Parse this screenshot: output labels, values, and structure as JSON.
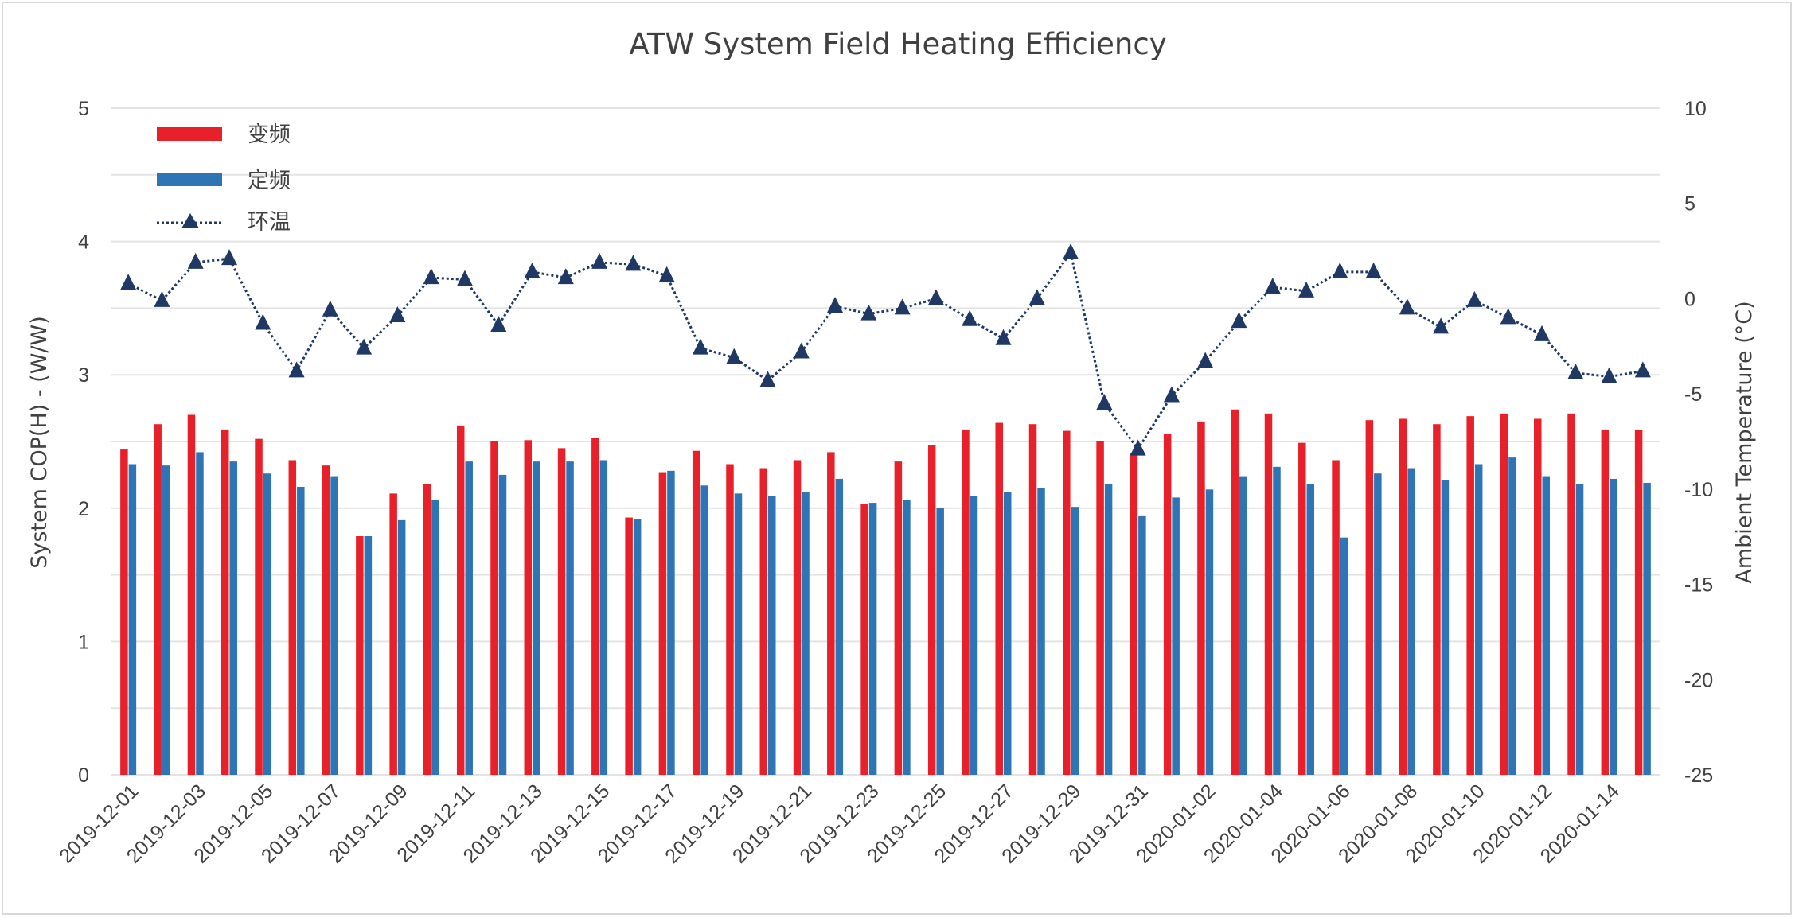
{
  "chart_data": {
    "type": "bar",
    "title": "ATW System Field Heating Efficiency",
    "ylabel_left": "System COP(H) - (W/W)",
    "ylabel_right": "Ambient Temperature (°C)",
    "ylim_left": [
      0,
      5
    ],
    "yticks_left": [
      "0",
      "1",
      "2",
      "3",
      "4",
      "5"
    ],
    "ylim_right": [
      -25,
      10
    ],
    "yticks_right": [
      "-25",
      "-20",
      "-15",
      "-10",
      "-5",
      "0",
      "5",
      "10"
    ],
    "grid": true,
    "legend_position": "top-left",
    "x_labels": [
      "2019-12-01",
      "2019-12-03",
      "2019-12-05",
      "2019-12-07",
      "2019-12-09",
      "2019-12-11",
      "2019-12-13",
      "2019-12-15",
      "2019-12-17",
      "2019-12-19",
      "2019-12-21",
      "2019-12-23",
      "2019-12-25",
      "2019-12-27",
      "2019-12-29",
      "2019-12-31",
      "2020-01-02",
      "2020-01-04",
      "2020-01-06",
      "2020-01-08",
      "2020-01-10",
      "2020-01-12",
      "2020-01-14"
    ],
    "categories": [
      "2019-12-01",
      "2019-12-02",
      "2019-12-03",
      "2019-12-04",
      "2019-12-05",
      "2019-12-06",
      "2019-12-07",
      "2019-12-08",
      "2019-12-09",
      "2019-12-10",
      "2019-12-11",
      "2019-12-12",
      "2019-12-13",
      "2019-12-14",
      "2019-12-15",
      "2019-12-16",
      "2019-12-17",
      "2019-12-18",
      "2019-12-19",
      "2019-12-20",
      "2019-12-21",
      "2019-12-22",
      "2019-12-23",
      "2019-12-24",
      "2019-12-25",
      "2019-12-26",
      "2019-12-27",
      "2019-12-28",
      "2019-12-29",
      "2019-12-30",
      "2019-12-31",
      "2020-01-01",
      "2020-01-02",
      "2020-01-03",
      "2020-01-04",
      "2020-01-05",
      "2020-01-06",
      "2020-01-07",
      "2020-01-08",
      "2020-01-09",
      "2020-01-10",
      "2020-01-11",
      "2020-01-12",
      "2020-01-13",
      "2020-01-14",
      "2020-01-15"
    ],
    "series": [
      {
        "name": "变频",
        "kind": "bar",
        "axis": "left",
        "color": "#e8202a",
        "values": [
          2.44,
          2.63,
          2.7,
          2.59,
          2.52,
          2.36,
          2.32,
          1.79,
          2.11,
          2.18,
          2.62,
          2.5,
          2.51,
          2.45,
          2.53,
          1.93,
          2.27,
          2.43,
          2.33,
          2.3,
          2.36,
          2.42,
          2.03,
          2.35,
          2.47,
          2.59,
          2.64,
          2.63,
          2.58,
          2.5,
          2.41,
          2.56,
          2.65,
          2.74,
          2.71,
          2.49,
          2.36,
          2.66,
          2.67,
          2.63,
          2.69,
          2.71,
          2.67,
          2.71,
          2.59,
          2.59
        ]
      },
      {
        "name": "定频",
        "kind": "bar",
        "axis": "left",
        "color": "#2e75b6",
        "values": [
          2.33,
          2.32,
          2.42,
          2.35,
          2.26,
          2.16,
          2.24,
          1.79,
          1.91,
          2.06,
          2.35,
          2.25,
          2.35,
          2.35,
          2.36,
          1.92,
          2.28,
          2.17,
          2.11,
          2.09,
          2.12,
          2.22,
          2.04,
          2.06,
          2.0,
          2.09,
          2.12,
          2.15,
          2.01,
          2.18,
          1.94,
          2.08,
          2.14,
          2.24,
          2.31,
          2.18,
          1.78,
          2.26,
          2.3,
          2.21,
          2.33,
          2.38,
          2.24,
          2.18,
          2.22,
          2.19
        ]
      },
      {
        "name": "环温",
        "kind": "line",
        "axis": "right",
        "color": "#1f3864",
        "values": [
          0.8,
          -0.1,
          1.9,
          2.1,
          -1.3,
          -3.8,
          -0.6,
          -2.6,
          -0.9,
          1.1,
          1.0,
          -1.4,
          1.4,
          1.1,
          1.9,
          1.8,
          1.2,
          -2.6,
          -3.1,
          -4.3,
          -2.8,
          -0.4,
          -0.8,
          -0.5,
          0.0,
          -1.1,
          -2.1,
          0.0,
          2.4,
          -5.5,
          -7.9,
          -5.1,
          -3.3,
          -1.2,
          0.6,
          0.4,
          1.4,
          1.4,
          -0.5,
          -1.5,
          -0.1,
          -1.0,
          -1.9,
          -3.9,
          -4.1,
          -3.8
        ]
      }
    ]
  }
}
